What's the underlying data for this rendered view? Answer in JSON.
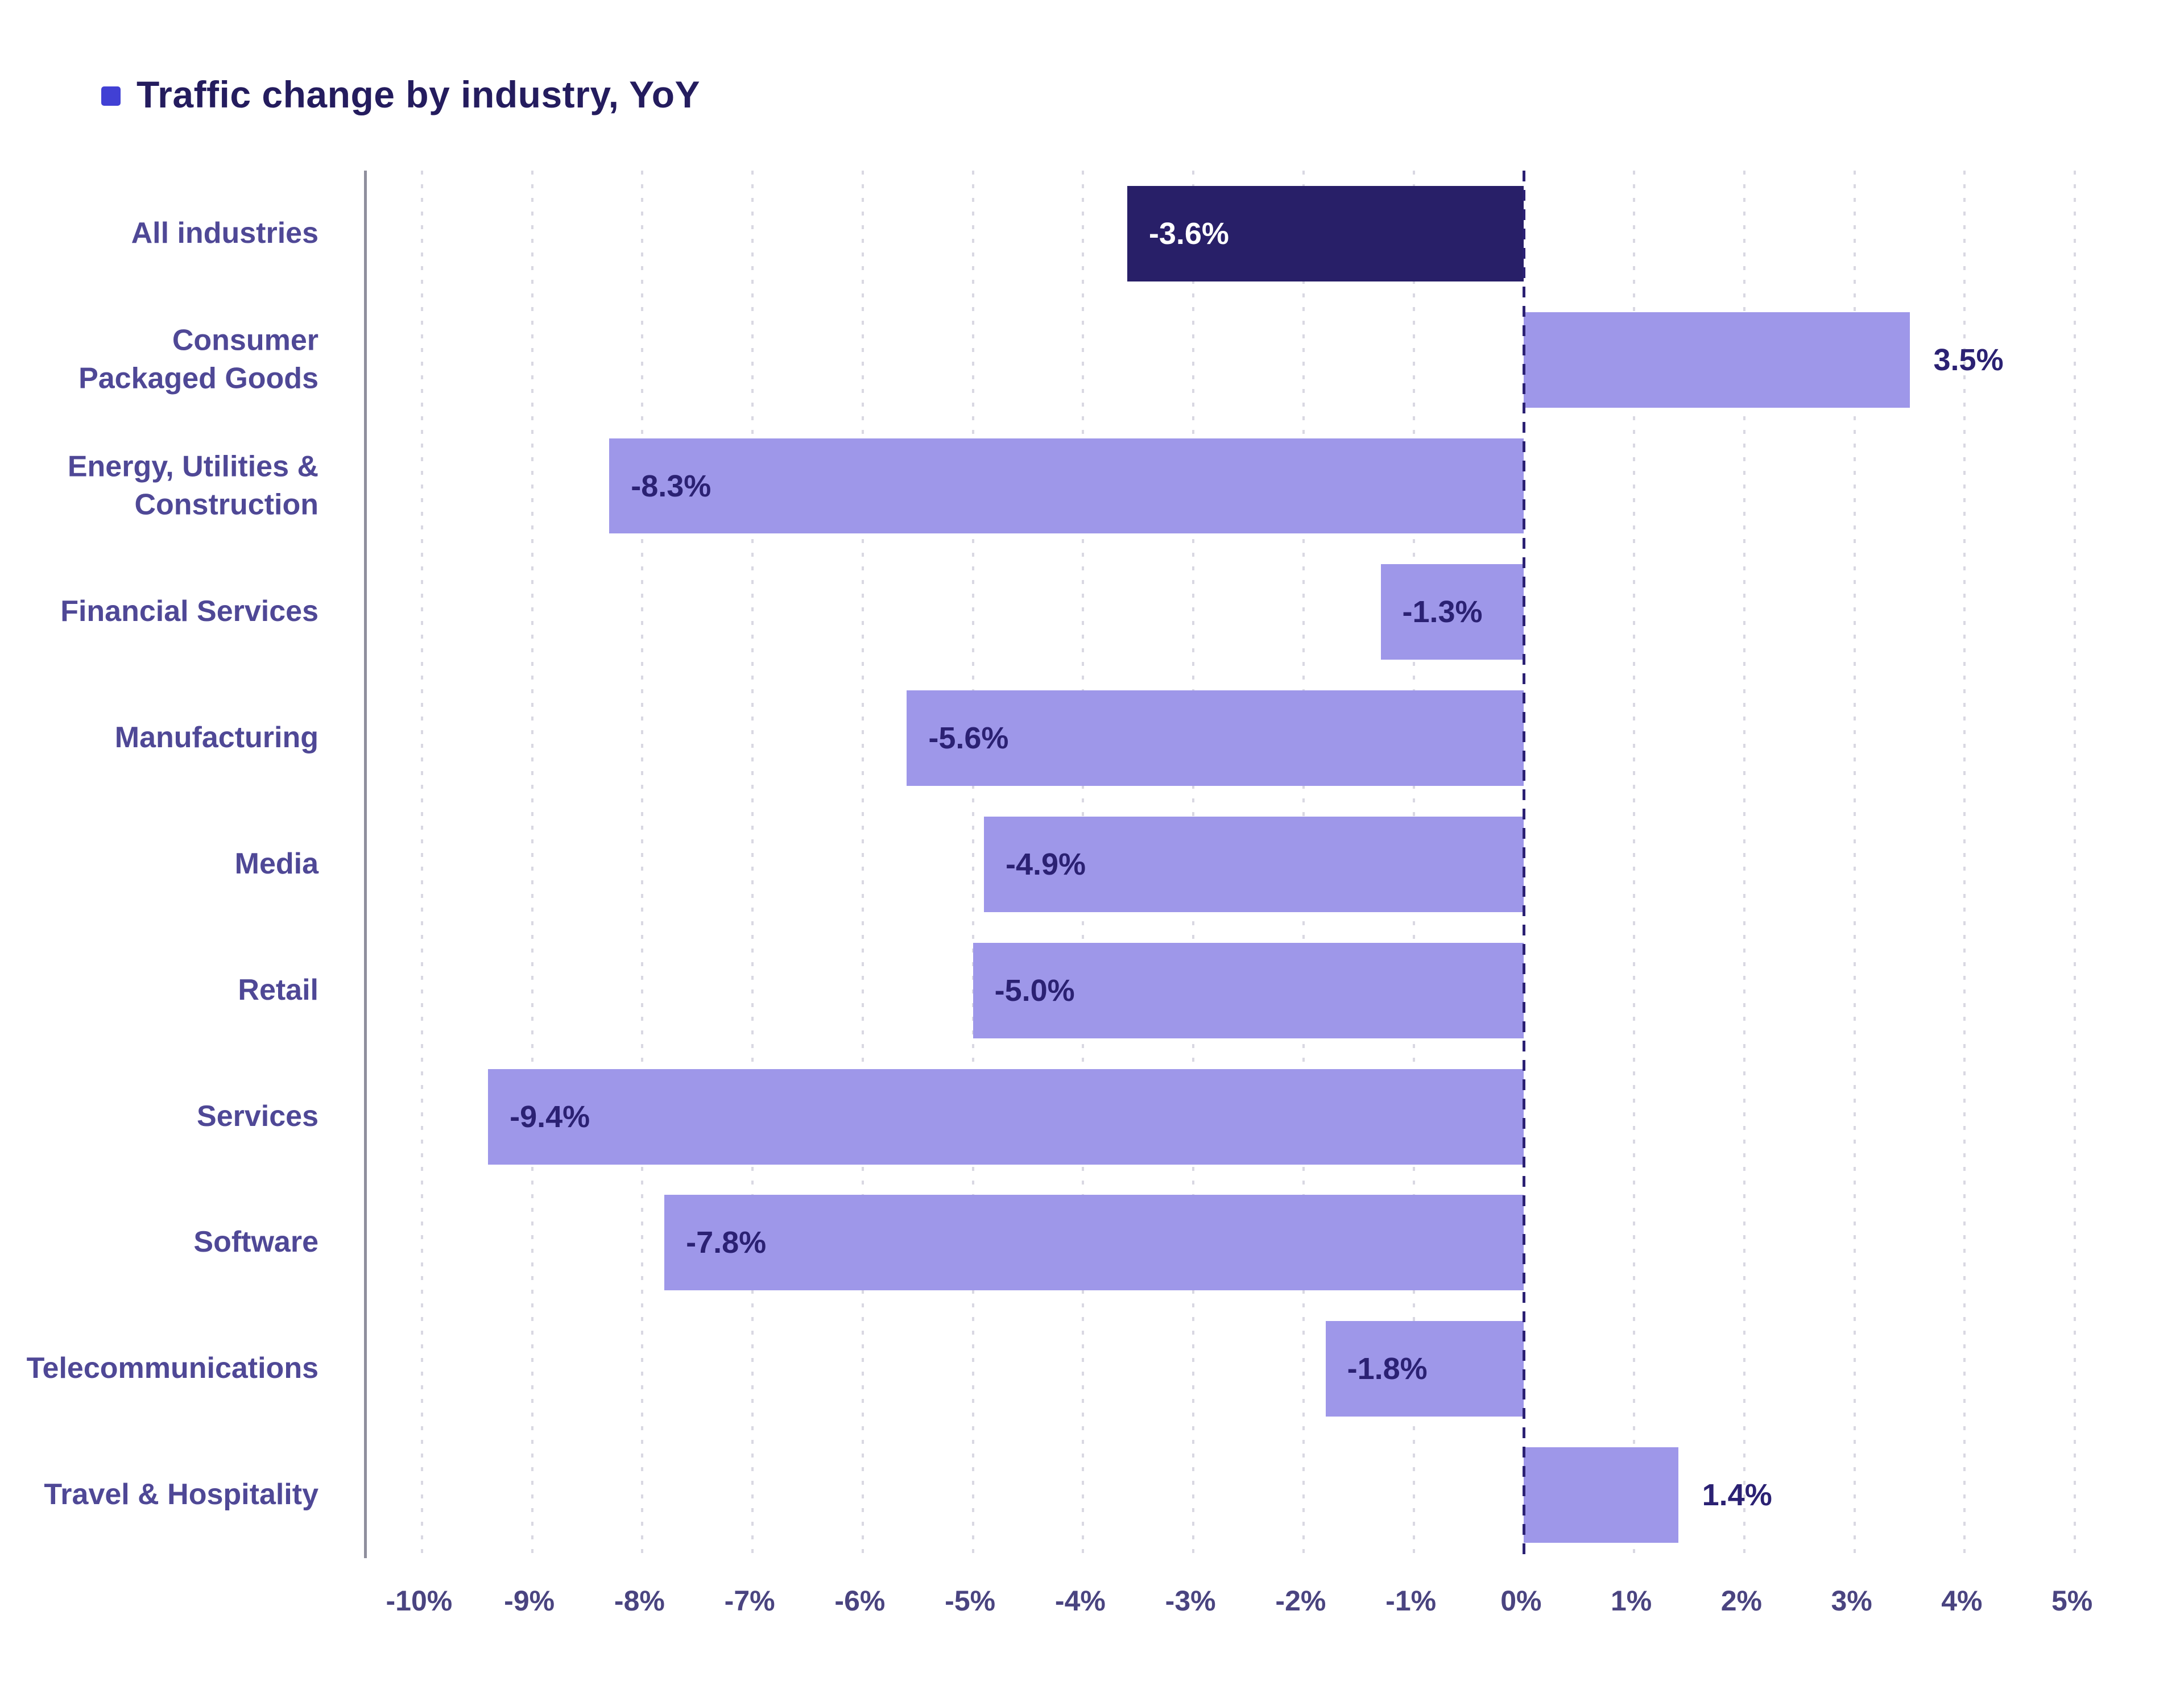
{
  "title": "Traffic change by industry, YoY",
  "colors": {
    "accent_bullet": "#4140d4",
    "bar": "#9e97e9",
    "highlight_bar": "#281f68",
    "value_label": "#2b2173",
    "value_label_on_highlight": "#ffffff",
    "category_label": "#4f4896",
    "tick_label": "#4a4480",
    "gridline": "#d9d8e2",
    "zero_line": "#2b2173",
    "axis_line": "#8f8f9d",
    "background": "#ffffff"
  },
  "chart_data": {
    "type": "bar",
    "orientation": "horizontal",
    "title": "Traffic change by industry, YoY",
    "categories": [
      "All industries",
      "Consumer\nPackaged Goods",
      "Energy, Utilities &\nConstruction",
      "Financial Services",
      "Manufacturing",
      "Media",
      "Retail",
      "Services",
      "Software",
      "Telecommunications",
      "Travel & Hospitality"
    ],
    "values": [
      -3.6,
      3.5,
      -8.3,
      -1.3,
      -5.6,
      -4.9,
      -5.0,
      -9.4,
      -7.8,
      -1.8,
      1.4
    ],
    "value_labels": [
      "-3.6%",
      "3.5%",
      "-8.3%",
      "-1.3%",
      "-5.6%",
      "-4.9%",
      "-5.0%",
      "-9.4%",
      "-7.8%",
      "-1.8%",
      "1.4%"
    ],
    "highlight_index": 0,
    "xlabel": "",
    "ylabel": "",
    "xlim": [
      -10.5,
      5.5
    ],
    "tick_values": [
      -10,
      -9,
      -8,
      -7,
      -6,
      -5,
      -4,
      -3,
      -2,
      -1,
      0,
      1,
      2,
      3,
      4,
      5
    ],
    "tick_labels": [
      "-10%",
      "-9%",
      "-8%",
      "-7%",
      "-6%",
      "-5%",
      "-4%",
      "-3%",
      "-2%",
      "-1%",
      "0%",
      "1%",
      "2%",
      "3%",
      "4%",
      "5%"
    ],
    "grid": "vertical dotted gridlines at each 1% tick",
    "zero_line": "vertical dashed line at 0%",
    "legend": "none",
    "bar_label_placement": "negative bars: label inside left end; positive bars: label outside right end"
  }
}
